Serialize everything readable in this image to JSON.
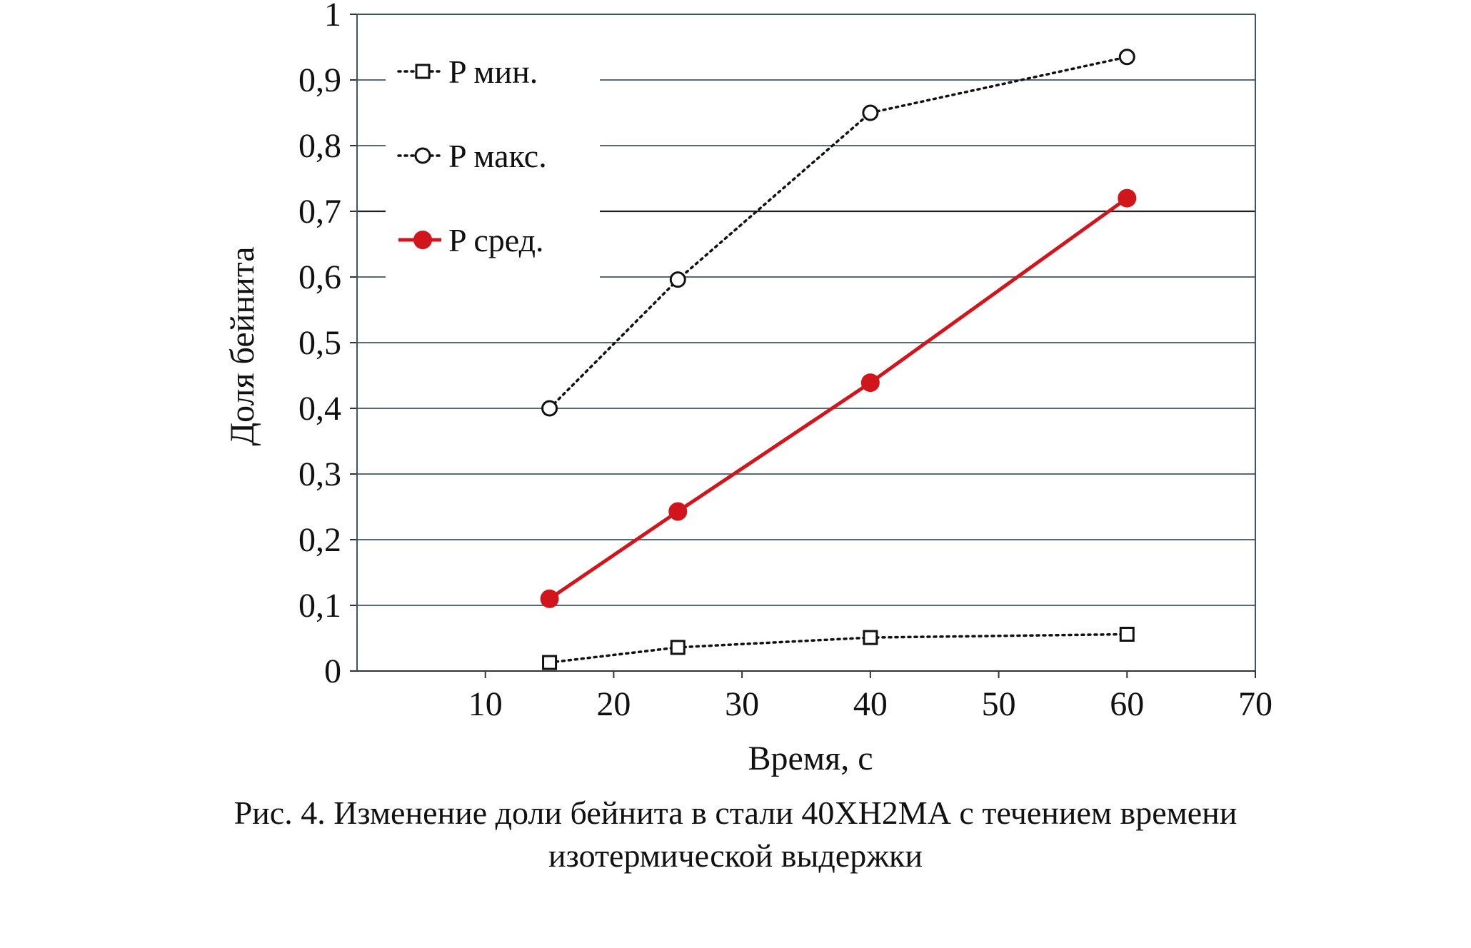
{
  "chart_data": {
    "type": "line",
    "xlabel": "Время, с",
    "ylabel": "Доля бейнита",
    "xlim": [
      0,
      70
    ],
    "ylim": [
      0,
      1
    ],
    "x_ticks": [
      10,
      20,
      30,
      40,
      50,
      60,
      70
    ],
    "y_ticks": [
      0,
      0.1,
      0.2,
      0.3,
      0.4,
      0.5,
      0.6,
      0.7,
      0.8,
      0.9,
      1
    ],
    "y_tick_labels": [
      "0",
      "0,1",
      "0,2",
      "0,3",
      "0,4",
      "0,5",
      "0,6",
      "0,7",
      "0,8",
      "0,9",
      "1"
    ],
    "grid": "horizontal",
    "legend_placement": "top-left",
    "series": [
      {
        "name": "P мин.",
        "x": [
          15,
          25,
          40,
          60
        ],
        "y": [
          0.013,
          0.036,
          0.051,
          0.056
        ],
        "color": "#111111",
        "line": "dotted",
        "marker": "square-open"
      },
      {
        "name": "P макс.",
        "x": [
          15,
          25,
          40,
          60
        ],
        "y": [
          0.4,
          0.596,
          0.85,
          0.935
        ],
        "color": "#111111",
        "line": "dotted",
        "marker": "circle-open"
      },
      {
        "name": "P сред.",
        "x": [
          15,
          25,
          40,
          60
        ],
        "y": [
          0.11,
          0.243,
          0.439,
          0.72
        ],
        "color": "#d0161c",
        "line": "solid",
        "marker": "circle-filled"
      }
    ]
  },
  "caption": {
    "line1": "Рис. 4. Изменение доли бейнита в стали 40ХН2МА с течением времени",
    "line2": "изотермической выдержки"
  }
}
